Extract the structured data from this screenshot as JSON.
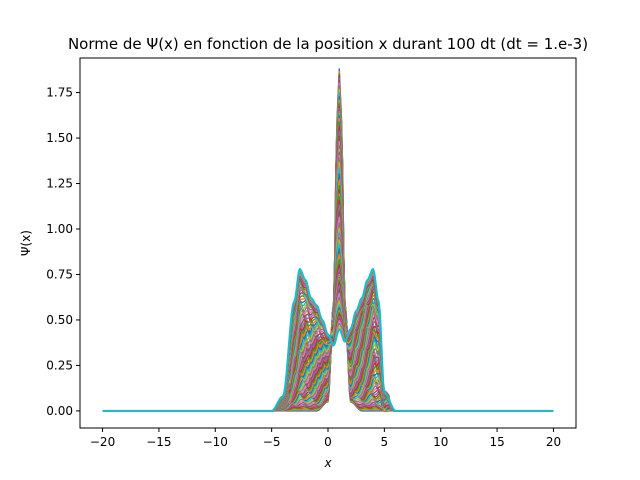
{
  "chart_data": {
    "type": "line",
    "title": "Norme de Ψ(x) en fonction de la position x durant 100 dt (dt = 1.e-3)",
    "xlabel": "x",
    "ylabel": "Ψ(x)",
    "xlim": [
      -22,
      22
    ],
    "ylim": [
      -0.094,
      1.94
    ],
    "xticks": [
      -20,
      -15,
      -10,
      -5,
      0,
      5,
      10,
      15,
      20
    ],
    "yticks": [
      0.0,
      0.25,
      0.5,
      0.75,
      1.0,
      1.25,
      1.5,
      1.75
    ],
    "xtick_labels": [
      "−20",
      "−15",
      "−10",
      "−5",
      "0",
      "5",
      "10",
      "15",
      "20"
    ],
    "ytick_labels": [
      "0.00",
      "0.25",
      "0.50",
      "0.75",
      "1.00",
      "1.25",
      "1.50",
      "1.75"
    ],
    "grid": false,
    "legend": "none",
    "series_count": 100,
    "colors": [
      "#1f77b4",
      "#ff7f0e",
      "#2ca02c",
      "#d62728",
      "#9467bd",
      "#8c564b",
      "#e377c2",
      "#7f7f7f",
      "#bcbd22",
      "#17becf"
    ],
    "snapshots": [
      {
        "step": 1,
        "x": [
          -20,
          -5,
          -4,
          -3,
          -2,
          -1,
          0,
          0.5,
          0.8,
          1,
          1.2,
          1.5,
          2,
          3,
          4,
          5,
          6,
          20
        ],
        "y": [
          0,
          0,
          0,
          0,
          0,
          0,
          0.05,
          0.6,
          1.6,
          1.88,
          1.6,
          0.6,
          0.05,
          0,
          0,
          0,
          0,
          0
        ]
      },
      {
        "step": 100,
        "x": [
          -20,
          -5,
          -4,
          -3,
          -2.5,
          -2,
          -1.5,
          -1,
          -0.5,
          0,
          0.5,
          1,
          1.5,
          2,
          2.5,
          3,
          3.5,
          4,
          4.5,
          5,
          6,
          20
        ],
        "y": [
          0,
          0,
          0.08,
          0.6,
          0.78,
          0.72,
          0.62,
          0.58,
          0.5,
          0.42,
          0.36,
          0.45,
          0.38,
          0.45,
          0.55,
          0.62,
          0.72,
          0.78,
          0.6,
          0.1,
          0,
          0
        ]
      }
    ]
  }
}
